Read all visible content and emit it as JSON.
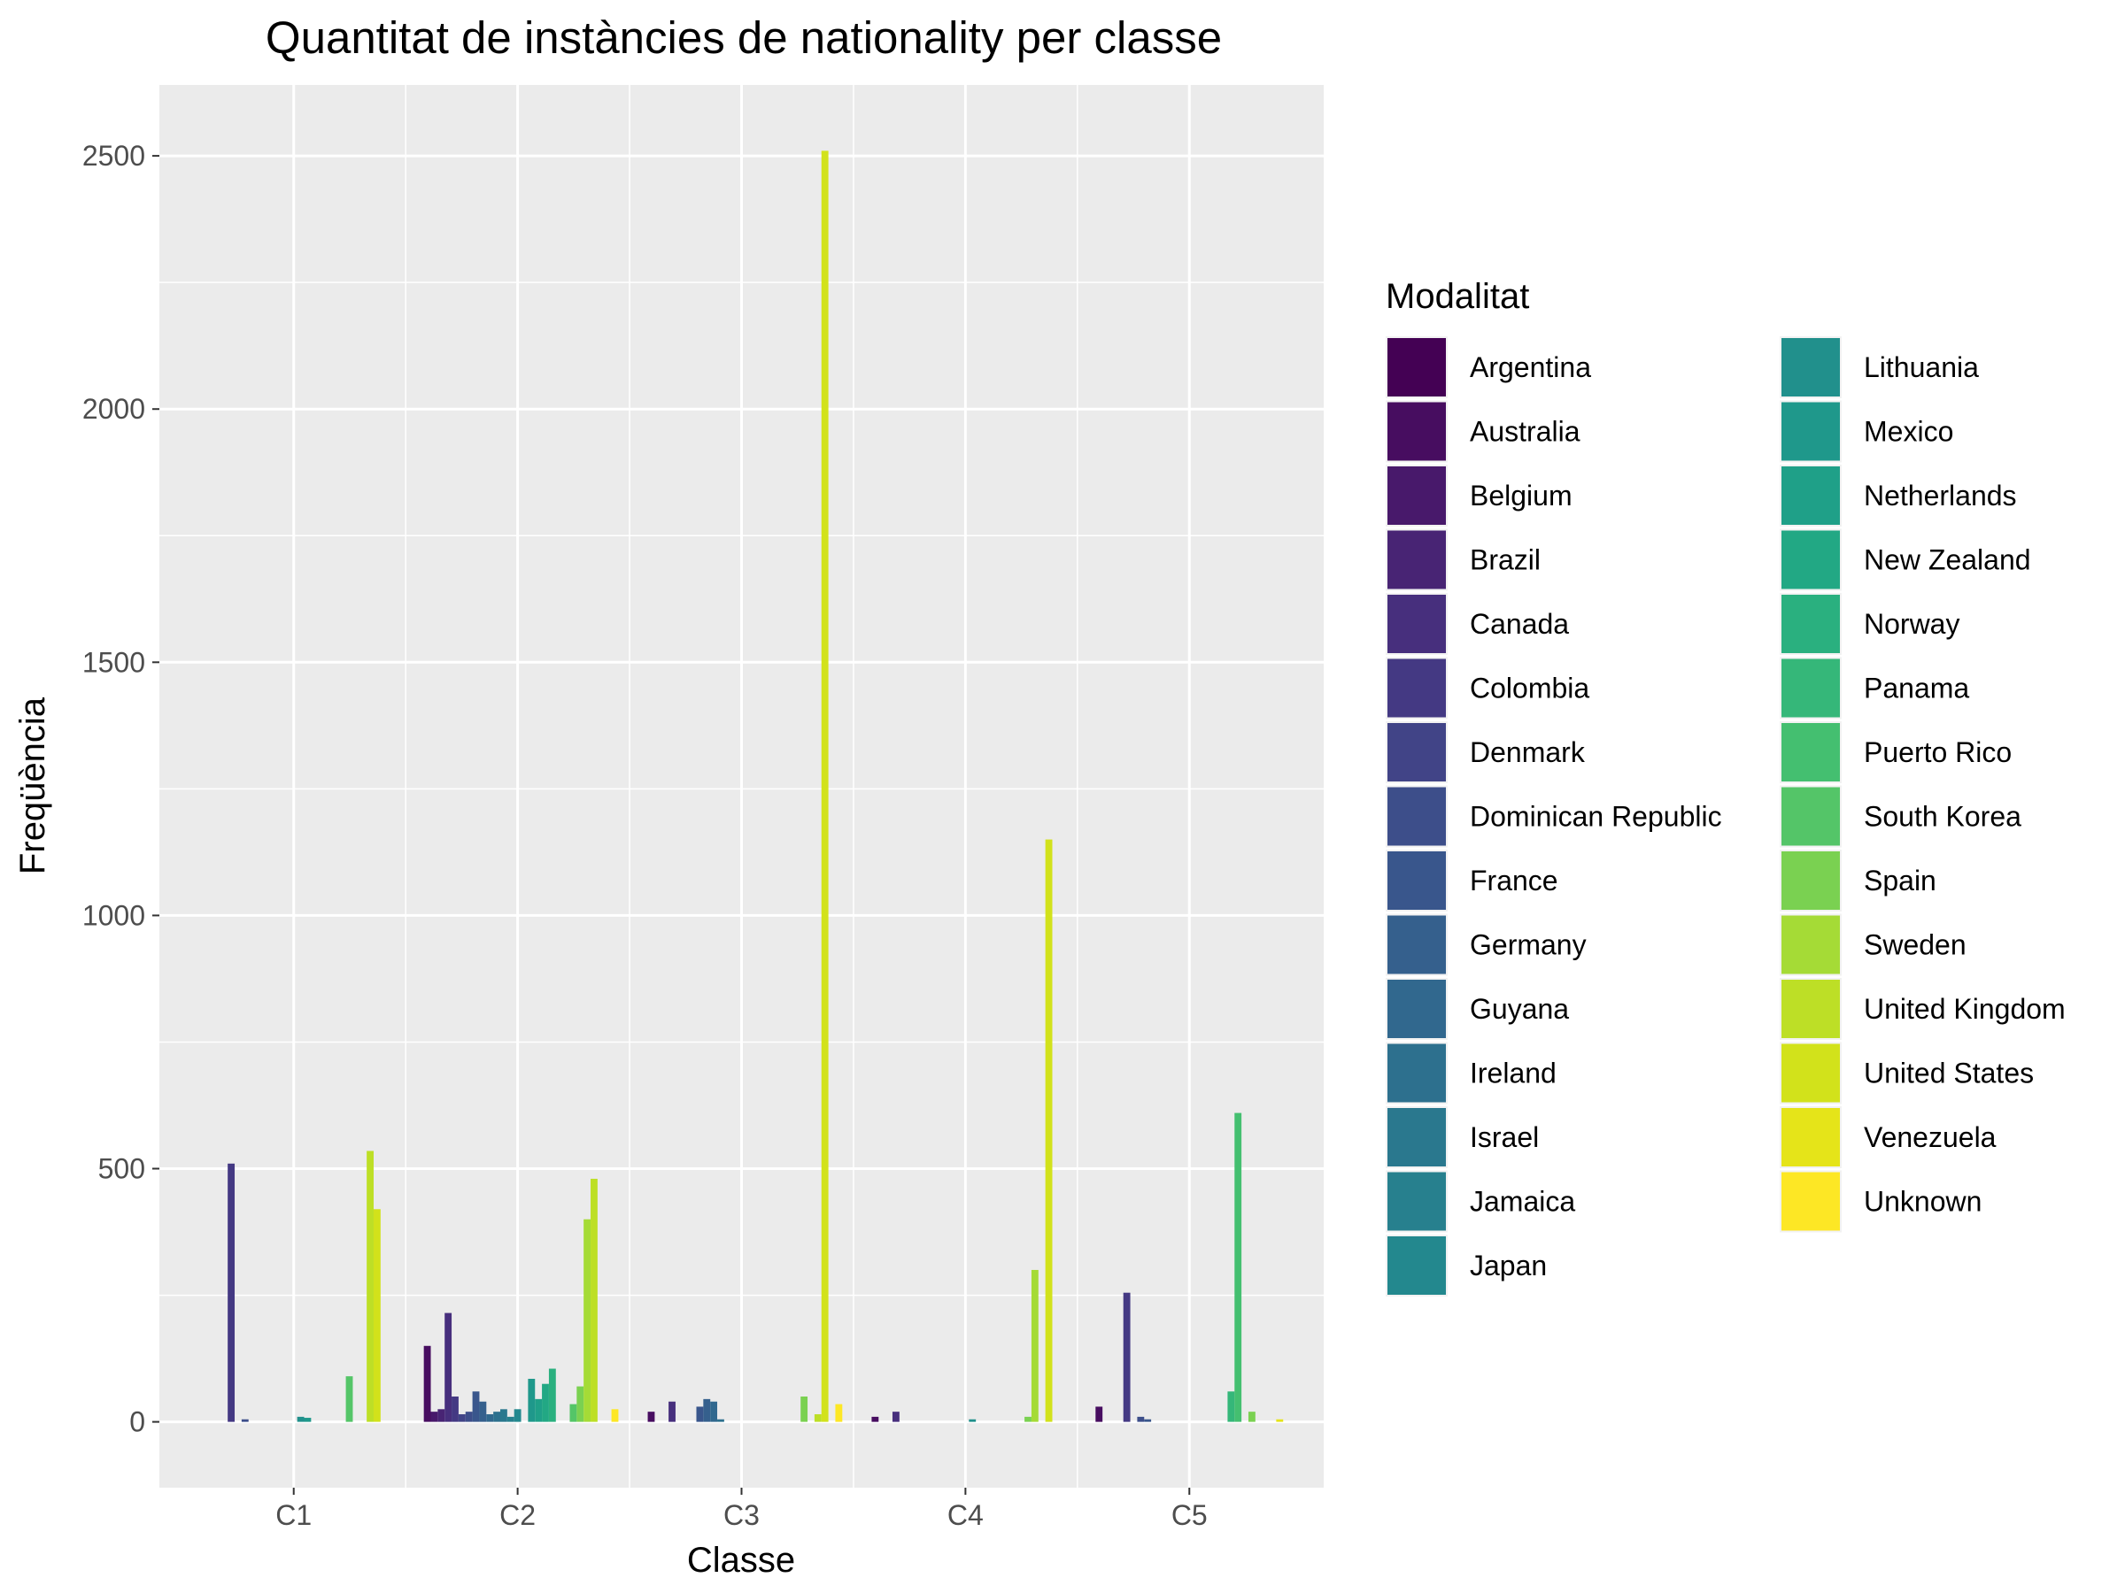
{
  "chart_data": {
    "type": "bar",
    "title": "Quantitat de instàncies de nationality per classe",
    "xlabel": "Classe",
    "ylabel": "Freqüència",
    "ylim": [
      -130,
      2640
    ],
    "yticks": [
      0,
      500,
      1000,
      1500,
      2000,
      2500
    ],
    "grid": true,
    "legend": {
      "title": "Modalitat",
      "placement": "right",
      "columns": 2
    },
    "categories": [
      "C1",
      "C2",
      "C3",
      "C4",
      "C5"
    ],
    "series": [
      {
        "name": "Argentina",
        "color": "#440154",
        "values": [
          0,
          0,
          0,
          0,
          0
        ]
      },
      {
        "name": "Australia",
        "color": "#470D60",
        "values": [
          0,
          150,
          20,
          10,
          30
        ]
      },
      {
        "name": "Belgium",
        "color": "#48196B",
        "values": [
          0,
          20,
          0,
          0,
          0
        ]
      },
      {
        "name": "Brazil",
        "color": "#482474",
        "values": [
          0,
          25,
          0,
          0,
          0
        ]
      },
      {
        "name": "Canada",
        "color": "#472F7D",
        "values": [
          0,
          215,
          40,
          20,
          0
        ]
      },
      {
        "name": "Colombia",
        "color": "#443983",
        "values": [
          510,
          50,
          0,
          0,
          255
        ]
      },
      {
        "name": "Denmark",
        "color": "#414487",
        "values": [
          0,
          15,
          0,
          0,
          0
        ]
      },
      {
        "name": "Dominican Republic",
        "color": "#3D4E8A",
        "values": [
          5,
          20,
          0,
          0,
          10
        ]
      },
      {
        "name": "France",
        "color": "#39568C",
        "values": [
          0,
          60,
          30,
          0,
          5
        ]
      },
      {
        "name": "Germany",
        "color": "#35608D",
        "values": [
          0,
          40,
          45,
          0,
          0
        ]
      },
      {
        "name": "Guyana",
        "color": "#31688E",
        "values": [
          0,
          15,
          40,
          0,
          0
        ]
      },
      {
        "name": "Ireland",
        "color": "#2D708E",
        "values": [
          0,
          20,
          5,
          0,
          0
        ]
      },
      {
        "name": "Israel",
        "color": "#2A788E",
        "values": [
          0,
          25,
          0,
          0,
          0
        ]
      },
      {
        "name": "Jamaica",
        "color": "#27808E",
        "values": [
          0,
          10,
          0,
          0,
          0
        ]
      },
      {
        "name": "Japan",
        "color": "#23888E",
        "values": [
          0,
          25,
          0,
          0,
          0
        ]
      },
      {
        "name": "Lithuania",
        "color": "#21908C",
        "values": [
          10,
          0,
          0,
          5,
          0
        ]
      },
      {
        "name": "Mexico",
        "color": "#1F988B",
        "values": [
          8,
          85,
          0,
          0,
          0
        ]
      },
      {
        "name": "Netherlands",
        "color": "#1FA088",
        "values": [
          0,
          45,
          0,
          0,
          0
        ]
      },
      {
        "name": "New Zealand",
        "color": "#22A884",
        "values": [
          0,
          75,
          0,
          0,
          0
        ]
      },
      {
        "name": "Norway",
        "color": "#2AB07F",
        "values": [
          0,
          105,
          0,
          0,
          0
        ]
      },
      {
        "name": "Panama",
        "color": "#35B779",
        "values": [
          0,
          0,
          0,
          0,
          60
        ]
      },
      {
        "name": "Puerto Rico",
        "color": "#44BF70",
        "values": [
          0,
          0,
          0,
          0,
          610
        ]
      },
      {
        "name": "South Korea",
        "color": "#54C568",
        "values": [
          90,
          35,
          0,
          0,
          0
        ]
      },
      {
        "name": "Spain",
        "color": "#7AD151",
        "values": [
          0,
          70,
          50,
          10,
          20
        ]
      },
      {
        "name": "Sweden",
        "color": "#A5DB36",
        "values": [
          0,
          400,
          0,
          300,
          0
        ]
      },
      {
        "name": "United Kingdom",
        "color": "#BDDF26",
        "values": [
          535,
          480,
          15,
          0,
          0
        ]
      },
      {
        "name": "United States",
        "color": "#D2E21B",
        "values": [
          420,
          0,
          2510,
          1150,
          0
        ]
      },
      {
        "name": "Venezuela",
        "color": "#E5E419",
        "values": [
          0,
          0,
          0,
          0,
          5
        ]
      },
      {
        "name": "Unknown",
        "color": "#FDE725",
        "values": [
          0,
          25,
          35,
          0,
          0
        ]
      }
    ]
  }
}
